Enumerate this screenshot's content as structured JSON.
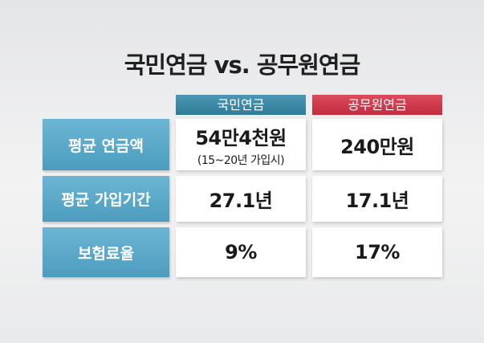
{
  "title": "국민연금 vs. 공무원연금",
  "table": {
    "columns": [
      "국민연금",
      "공무원연금"
    ],
    "rows": [
      {
        "label": "평균 연금액",
        "values": [
          "54만4천원",
          "240만원"
        ],
        "note": "(15~20년 가입시)"
      },
      {
        "label": "평균 가입기간",
        "values": [
          "27.1년",
          "17.1년"
        ]
      },
      {
        "label": "보험료율",
        "values": [
          "9%",
          "17%"
        ]
      }
    ]
  }
}
